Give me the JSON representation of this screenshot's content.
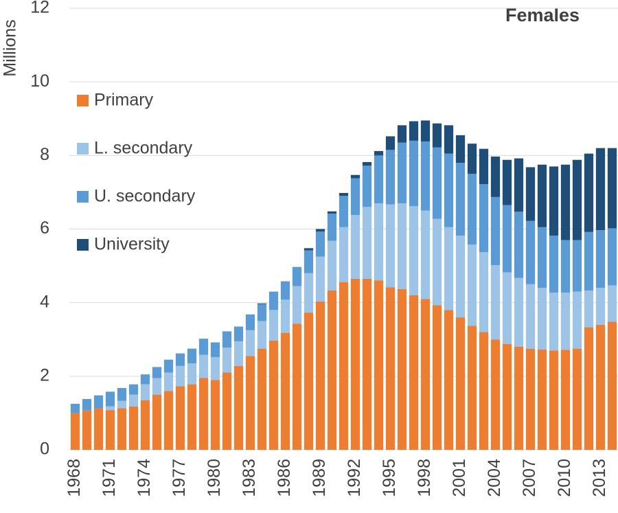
{
  "chart_data": {
    "type": "stacked_bar",
    "title": "Females",
    "y_label": "Millions",
    "categories": [
      "1968",
      null,
      null,
      "1971",
      null,
      null,
      "1974",
      null,
      null,
      "1977",
      null,
      null,
      "1980",
      null,
      null,
      "1983",
      null,
      null,
      "1986",
      null,
      null,
      "1989",
      null,
      null,
      "1992",
      null,
      null,
      "1995",
      null,
      null,
      "1998",
      null,
      null,
      "2001",
      null,
      null,
      "2004",
      null,
      null,
      "2007",
      null,
      null,
      "2010",
      null,
      null,
      "2013",
      null
    ],
    "series": [
      {
        "name": "Primary",
        "color": "#ed7d31",
        "values": [
          1.0,
          1.07,
          1.13,
          1.08,
          1.13,
          1.18,
          1.35,
          1.5,
          1.6,
          1.73,
          1.78,
          1.95,
          1.9,
          2.1,
          2.28,
          2.55,
          2.75,
          2.97,
          3.18,
          3.43,
          3.73,
          4.03,
          4.33,
          4.56,
          4.65,
          4.65,
          4.6,
          4.42,
          4.37,
          4.2,
          4.1,
          3.93,
          3.8,
          3.6,
          3.37,
          3.2,
          3.0,
          2.88,
          2.8,
          2.75,
          2.73,
          2.7,
          2.72,
          2.75,
          3.33,
          3.4,
          3.48
        ]
      },
      {
        "name": "L. secondary",
        "color": "#9dc3e6",
        "values": [
          0,
          0,
          0,
          0.1,
          0.2,
          0.32,
          0.43,
          0.45,
          0.5,
          0.55,
          0.57,
          0.63,
          0.62,
          0.68,
          0.67,
          0.7,
          0.75,
          0.83,
          0.9,
          1.02,
          1.07,
          1.22,
          1.35,
          1.49,
          1.73,
          1.95,
          2.1,
          2.25,
          2.33,
          2.42,
          2.4,
          2.35,
          2.25,
          2.22,
          2.21,
          2.17,
          2.02,
          1.94,
          1.87,
          1.75,
          1.67,
          1.57,
          1.55,
          1.55,
          1.0,
          1.0,
          0.99
        ]
      },
      {
        "name": "U. secondary",
        "color": "#5b9bd5",
        "values": [
          0.25,
          0.31,
          0.35,
          0.4,
          0.35,
          0.28,
          0.27,
          0.3,
          0.35,
          0.34,
          0.4,
          0.44,
          0.4,
          0.44,
          0.4,
          0.43,
          0.46,
          0.5,
          0.5,
          0.52,
          0.62,
          0.68,
          0.74,
          0.85,
          1.0,
          1.12,
          1.3,
          1.48,
          1.65,
          1.78,
          1.88,
          1.94,
          2.0,
          1.98,
          1.92,
          1.85,
          1.85,
          1.83,
          1.8,
          1.72,
          1.65,
          1.55,
          1.43,
          1.4,
          1.59,
          1.57,
          1.55
        ]
      },
      {
        "name": "University",
        "color": "#1f4e79",
        "values": [
          0,
          0,
          0,
          0,
          0,
          0,
          0,
          0,
          0,
          0,
          0,
          0,
          0,
          0,
          0,
          0,
          0.02,
          0,
          0,
          0,
          0.06,
          0.07,
          0.06,
          0.08,
          0.09,
          0.1,
          0.12,
          0.37,
          0.47,
          0.53,
          0.57,
          0.65,
          0.77,
          0.75,
          0.82,
          0.96,
          1.1,
          1.23,
          1.45,
          1.46,
          1.7,
          1.88,
          2.05,
          2.18,
          2.13,
          2.23,
          2.18
        ]
      }
    ],
    "ylim": [
      0,
      12
    ],
    "yticks": [
      0,
      2,
      4,
      6,
      8,
      10,
      12
    ],
    "grid": true
  }
}
